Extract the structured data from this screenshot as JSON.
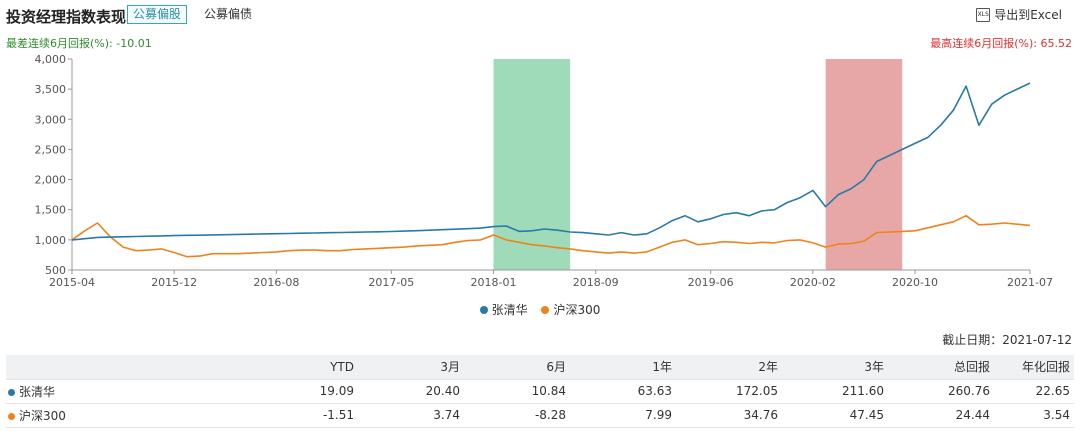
{
  "header": {
    "title": "投资经理指数表现",
    "tabs": [
      {
        "label": "公募偏股",
        "active": true
      },
      {
        "label": "公募偏债",
        "active": false
      }
    ],
    "export_label": "导出到Excel",
    "export_icon": "xls-icon"
  },
  "meta": {
    "worst_label": "最差连续6月回报(%):",
    "worst_value": "-10.01",
    "best_label": "最高连续6月回报(%):",
    "best_value": "65.52"
  },
  "chart_data": {
    "type": "line",
    "x_tick_labels": [
      "2015-04",
      "2015-12",
      "2016-08",
      "2017-05",
      "2018-01",
      "2018-09",
      "2019-06",
      "2020-02",
      "2020-10",
      "2021-07"
    ],
    "y_tick_labels": [
      "500",
      "1,000",
      "1,500",
      "2,000",
      "2,500",
      "3,000",
      "3,500",
      "4,000"
    ],
    "ylim": [
      500,
      4000
    ],
    "x": [
      "2015-04",
      "2015-05",
      "2015-06",
      "2015-07",
      "2015-08",
      "2015-09",
      "2015-10",
      "2015-11",
      "2015-12",
      "2016-01",
      "2016-02",
      "2016-03",
      "2016-04",
      "2016-05",
      "2016-06",
      "2016-07",
      "2016-08",
      "2016-09",
      "2016-10",
      "2016-11",
      "2016-12",
      "2017-01",
      "2017-02",
      "2017-03",
      "2017-04",
      "2017-05",
      "2017-06",
      "2017-07",
      "2017-08",
      "2017-09",
      "2017-10",
      "2017-11",
      "2017-12",
      "2018-01",
      "2018-02",
      "2018-03",
      "2018-04",
      "2018-05",
      "2018-06",
      "2018-07",
      "2018-08",
      "2018-09",
      "2018-10",
      "2018-11",
      "2018-12",
      "2019-01",
      "2019-02",
      "2019-03",
      "2019-04",
      "2019-05",
      "2019-06",
      "2019-07",
      "2019-08",
      "2019-09",
      "2019-10",
      "2019-11",
      "2019-12",
      "2020-01",
      "2020-02",
      "2020-03",
      "2020-04",
      "2020-05",
      "2020-06",
      "2020-07",
      "2020-08",
      "2020-09",
      "2020-10",
      "2020-11",
      "2020-12",
      "2021-01",
      "2021-02",
      "2021-03",
      "2021-04",
      "2021-05",
      "2021-06",
      "2021-07"
    ],
    "series": [
      {
        "name": "张清华",
        "color": "#2a7aa6",
        "values": [
          1000,
          1020,
          1040,
          1045,
          1050,
          1055,
          1060,
          1065,
          1070,
          1075,
          1078,
          1082,
          1086,
          1090,
          1094,
          1098,
          1102,
          1106,
          1110,
          1114,
          1118,
          1122,
          1126,
          1130,
          1134,
          1138,
          1145,
          1152,
          1160,
          1168,
          1176,
          1185,
          1195,
          1220,
          1230,
          1140,
          1150,
          1180,
          1160,
          1130,
          1120,
          1100,
          1080,
          1120,
          1080,
          1100,
          1200,
          1320,
          1400,
          1300,
          1350,
          1420,
          1450,
          1400,
          1480,
          1500,
          1620,
          1700,
          1820,
          1550,
          1750,
          1850,
          2000,
          2300,
          2400,
          2500,
          2600,
          2700,
          2900,
          3150,
          3550,
          2900,
          3250,
          3400,
          3500,
          3600
        ]
      },
      {
        "name": "沪深300",
        "color": "#f0821e",
        "values": [
          1000,
          1150,
          1280,
          1050,
          880,
          820,
          830,
          850,
          790,
          720,
          730,
          770,
          770,
          770,
          780,
          790,
          800,
          820,
          830,
          830,
          820,
          820,
          840,
          850,
          860,
          870,
          880,
          900,
          910,
          920,
          960,
          990,
          1000,
          1080,
          1000,
          960,
          920,
          900,
          870,
          850,
          820,
          800,
          780,
          800,
          780,
          800,
          880,
          960,
          1000,
          920,
          940,
          970,
          960,
          940,
          960,
          950,
          990,
          1000,
          950,
          880,
          930,
          940,
          980,
          1120,
          1130,
          1140,
          1150,
          1200,
          1250,
          1300,
          1400,
          1250,
          1260,
          1280,
          1260,
          1240
        ]
      }
    ],
    "shaded_regions": [
      {
        "label": "最差连续6月",
        "start": "2018-01",
        "end": "2018-07",
        "color": "#7fcfa2"
      },
      {
        "label": "最高连续6月",
        "start": "2020-03",
        "end": "2020-09",
        "color": "#e08a8a"
      }
    ],
    "grid": false,
    "legend_position": "bottom"
  },
  "legend": [
    {
      "label": "张清华",
      "color": "#2a7aa6"
    },
    {
      "label": "沪深300",
      "color": "#f0821e"
    }
  ],
  "cutoff": "截止日期：2021-07-12",
  "table": {
    "headers": [
      "",
      "YTD",
      "3月",
      "6月",
      "1年",
      "2年",
      "3年",
      "总回报",
      "年化回报"
    ],
    "rows": [
      {
        "name": "张清华",
        "color": "#2a7aa6",
        "values": [
          "19.09",
          "20.40",
          "10.84",
          "63.63",
          "172.05",
          "211.60",
          "260.76",
          "22.65"
        ]
      },
      {
        "name": "沪深300",
        "color": "#f0821e",
        "values": [
          "-1.51",
          "3.74",
          "-8.28",
          "7.99",
          "34.76",
          "47.45",
          "24.44",
          "3.54"
        ]
      }
    ]
  }
}
